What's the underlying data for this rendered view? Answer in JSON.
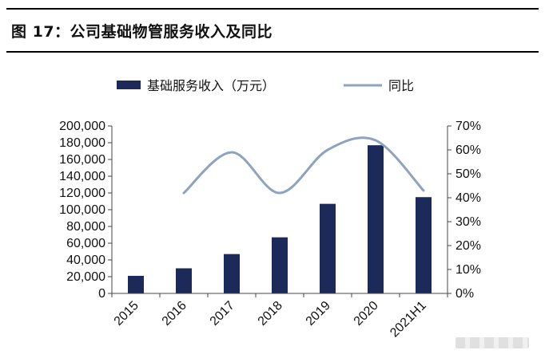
{
  "figure": {
    "title": "图 17：公司基础物管服务收入及同比"
  },
  "chart_data": {
    "type": "bar",
    "categories": [
      "2015",
      "2016",
      "2017",
      "2018",
      "2019",
      "2020",
      "2021H1"
    ],
    "series": [
      {
        "name": "基础服务收入（万元）",
        "kind": "bar",
        "axis": "left",
        "values": [
          21000,
          30000,
          47000,
          67000,
          107000,
          177000,
          115000
        ]
      },
      {
        "name": "同比",
        "kind": "line",
        "axis": "right",
        "values": [
          null,
          0.42,
          0.59,
          0.42,
          0.6,
          0.64,
          0.43
        ]
      }
    ],
    "y_left": {
      "min": 0,
      "max": 200000,
      "ticks": [
        "0",
        "20,000",
        "40,000",
        "60,000",
        "80,000",
        "100,000",
        "120,000",
        "140,000",
        "160,000",
        "180,000",
        "200,000"
      ]
    },
    "y_right": {
      "min": 0,
      "max": 0.7,
      "ticks": [
        "0%",
        "10%",
        "20%",
        "30%",
        "40%",
        "50%",
        "60%",
        "70%"
      ]
    },
    "grid": false,
    "legend_position": "top",
    "colors": {
      "bar": "#1c2a5a",
      "line": "#8ea3c0"
    }
  }
}
